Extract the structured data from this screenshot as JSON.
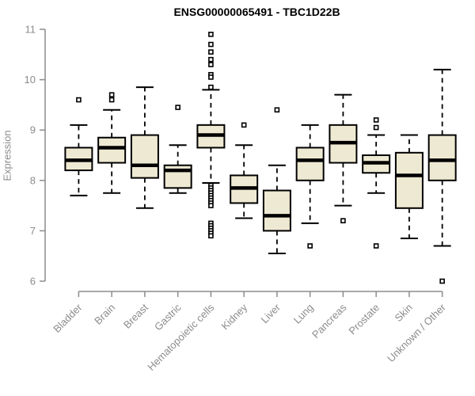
{
  "colors": {
    "box_fill": "#EEE9D2",
    "box_border": "#000000",
    "median": "#000000",
    "whisker": "#000000",
    "axis": "#8c8c8c",
    "tick_label": "#8c8c8c",
    "title": "#000000",
    "background": "#ffffff",
    "outlier_fill": "#ffffff"
  },
  "chart_data": {
    "type": "boxplot",
    "title": "ENSG00000065491 - TBC1D22B",
    "xlabel": "",
    "ylabel": "Expression",
    "ylim": [
      6,
      11
    ],
    "yticks": [
      6,
      7,
      8,
      9,
      10,
      11
    ],
    "grid": false,
    "legend": "none",
    "x_label_rotation_deg": 45,
    "categories": [
      "Bladder",
      "Brain",
      "Breast",
      "Gastric",
      "Hematopoietic cells",
      "Kidney",
      "Liver",
      "Lung",
      "Pancreas",
      "Prostate",
      "Skin",
      "Unknown / Other"
    ],
    "series": [
      {
        "name": "Bladder",
        "low": 7.7,
        "q1": 8.2,
        "median": 8.4,
        "q3": 8.65,
        "high": 9.1,
        "outliers": [
          9.6
        ]
      },
      {
        "name": "Brain",
        "low": 7.75,
        "q1": 8.35,
        "median": 8.65,
        "q3": 8.85,
        "high": 9.4,
        "outliers": [
          9.7,
          9.6
        ]
      },
      {
        "name": "Breast",
        "low": 7.45,
        "q1": 8.05,
        "median": 8.3,
        "q3": 8.9,
        "high": 9.85,
        "outliers": []
      },
      {
        "name": "Gastric",
        "low": 7.75,
        "q1": 7.85,
        "median": 8.2,
        "q3": 8.3,
        "high": 8.7,
        "outliers": [
          9.45
        ]
      },
      {
        "name": "Hematopoietic cells",
        "low": 7.95,
        "q1": 8.65,
        "median": 8.9,
        "q3": 9.1,
        "high": 9.8,
        "outliers": [
          10.9,
          10.7,
          10.55,
          10.4,
          10.3,
          10.1,
          10.05,
          9.85,
          7.9,
          7.85,
          7.8,
          7.75,
          7.7,
          7.65,
          7.6,
          7.55,
          7.5,
          7.15,
          7.1,
          7.05,
          7.0,
          6.95,
          6.9
        ]
      },
      {
        "name": "Kidney",
        "low": 7.25,
        "q1": 7.55,
        "median": 7.85,
        "q3": 8.1,
        "high": 8.7,
        "outliers": [
          9.1
        ]
      },
      {
        "name": "Liver",
        "low": 6.55,
        "q1": 7.0,
        "median": 7.3,
        "q3": 7.8,
        "high": 8.3,
        "outliers": [
          9.4
        ]
      },
      {
        "name": "Lung",
        "low": 7.15,
        "q1": 8.0,
        "median": 8.4,
        "q3": 8.65,
        "high": 9.1,
        "outliers": [
          6.7
        ]
      },
      {
        "name": "Pancreas",
        "low": 7.5,
        "q1": 8.35,
        "median": 8.75,
        "q3": 9.1,
        "high": 9.7,
        "outliers": [
          7.2
        ]
      },
      {
        "name": "Prostate",
        "low": 7.75,
        "q1": 8.15,
        "median": 8.35,
        "q3": 8.5,
        "high": 8.9,
        "outliers": [
          9.2,
          9.05,
          6.7
        ]
      },
      {
        "name": "Skin",
        "low": 6.85,
        "q1": 7.45,
        "median": 8.1,
        "q3": 8.55,
        "high": 8.9,
        "outliers": []
      },
      {
        "name": "Unknown / Other",
        "low": 6.7,
        "q1": 8.0,
        "median": 8.4,
        "q3": 8.9,
        "high": 10.2,
        "outliers": [
          6.0
        ]
      }
    ]
  }
}
